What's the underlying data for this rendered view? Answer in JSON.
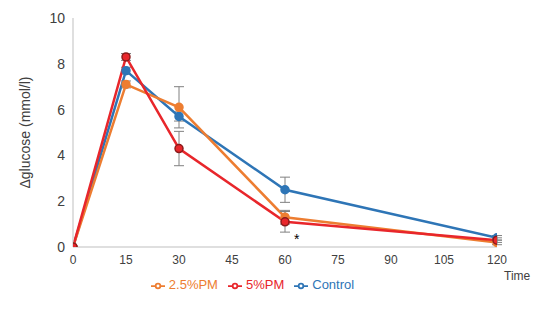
{
  "chart_data": {
    "type": "line",
    "y_label": "Δglucose (mmol/l)",
    "x_label": "Time",
    "x": [
      0,
      15,
      30,
      60,
      120
    ],
    "xlim": [
      0,
      120
    ],
    "xticks": [
      0,
      15,
      30,
      45,
      60,
      75,
      90,
      105,
      120
    ],
    "ylim": [
      0,
      10
    ],
    "yticks": [
      0,
      2,
      4,
      6,
      8,
      10
    ],
    "grid": false,
    "legend": "bottom",
    "series": [
      {
        "name": "Control",
        "color": "#2e75b6",
        "marker": "circle",
        "values": [
          0,
          7.7,
          5.7,
          2.5,
          0.4
        ],
        "errors": [
          0,
          0.15,
          0.2,
          0.55,
          0.1
        ]
      },
      {
        "name": "2.5%PM",
        "color": "#ed7d31",
        "marker": "circle",
        "values": [
          0,
          7.1,
          6.1,
          1.3,
          0.2
        ],
        "errors": [
          0,
          0.15,
          0.9,
          0.3,
          0.1
        ]
      },
      {
        "name": "5%PM",
        "color": "#e8262b",
        "marker": "circle",
        "values": [
          0,
          8.3,
          4.3,
          1.1,
          0.3
        ],
        "errors": [
          0,
          0.15,
          0.75,
          0.45,
          0.1
        ]
      }
    ],
    "annotations": [
      {
        "text": "*",
        "x": 60,
        "y": 0.35
      }
    ]
  }
}
